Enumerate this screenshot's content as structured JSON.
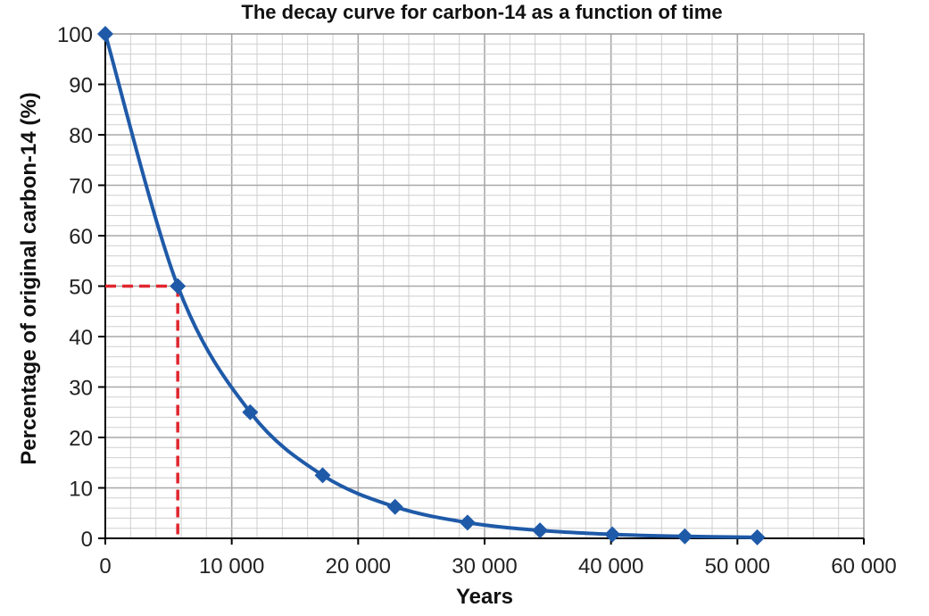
{
  "chart_data": {
    "type": "line",
    "title": "The decay curve for carbon-14 as a function of time",
    "xlabel": "Years",
    "ylabel": "Percentage of original carbon-14 (%)",
    "xlim": [
      0,
      60000
    ],
    "ylim": [
      0,
      100
    ],
    "x_ticks": [
      0,
      10000,
      20000,
      30000,
      40000,
      50000,
      60000
    ],
    "x_tick_labels": [
      "0",
      "10 000",
      "20 000",
      "30 000",
      "40 000",
      "50 000",
      "60 000"
    ],
    "y_ticks": [
      0,
      10,
      20,
      30,
      40,
      50,
      60,
      70,
      80,
      90,
      100
    ],
    "y_tick_labels": [
      "0",
      "10",
      "20",
      "30",
      "40",
      "50",
      "60",
      "70",
      "80",
      "90",
      "100"
    ],
    "grid": true,
    "half_life_marker": {
      "x": 5730,
      "y": 50,
      "color": "#e0262f",
      "style": "dashed"
    },
    "series": [
      {
        "x": [
          0,
          5730,
          11460,
          17190,
          22920,
          28650,
          34380,
          40110,
          45840,
          51570
        ],
        "y": [
          100,
          50,
          25,
          12.5,
          6.25,
          3.125,
          1.5625,
          0.78,
          0.39,
          0.2
        ],
        "color": "#1f5aa8",
        "marker": "diamond",
        "smooth": true
      }
    ]
  }
}
